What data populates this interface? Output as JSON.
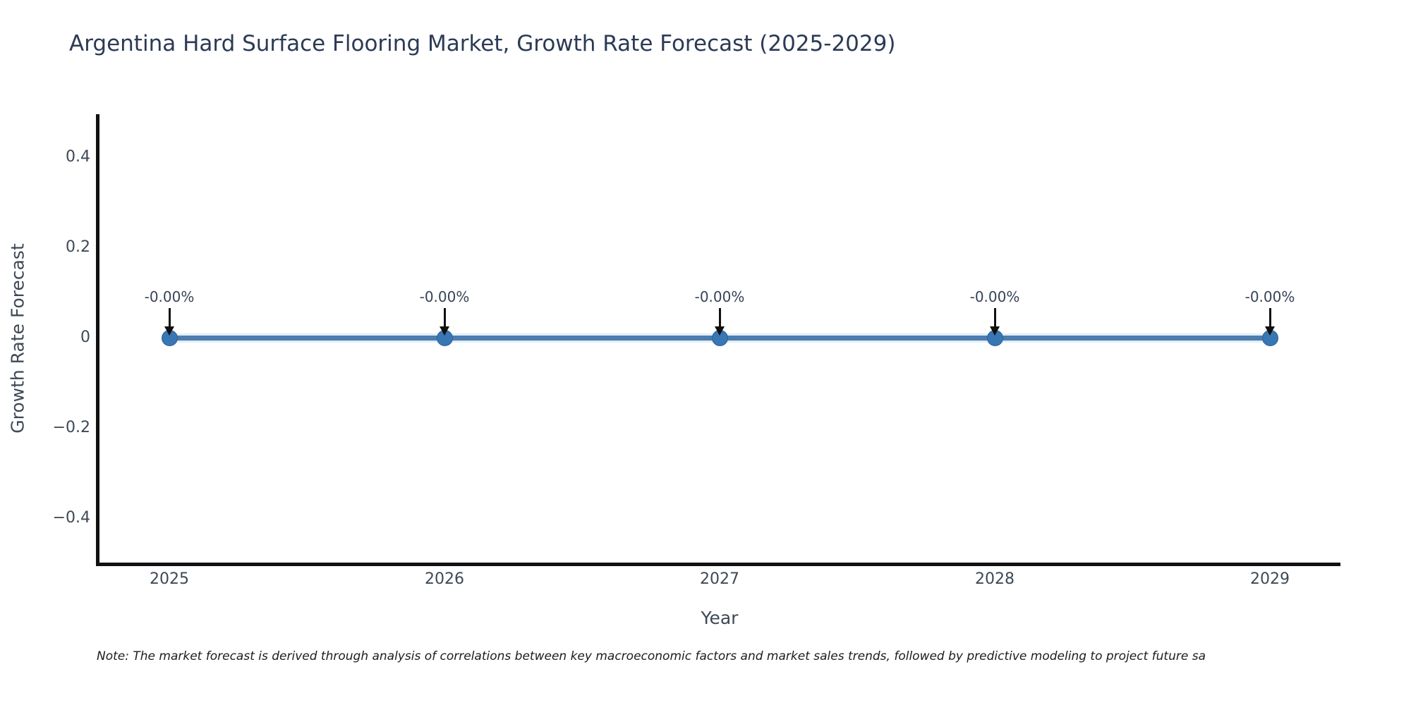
{
  "title": "Argentina Hard Surface Flooring Market, Growth Rate Forecast (2025-2029)",
  "note": "Note: The market forecast is derived through analysis of correlations between key macroeconomic factors and market sales trends, followed by predictive modeling to project future sa",
  "chart_data": {
    "type": "line",
    "title": "Argentina Hard Surface Flooring Market, Growth Rate Forecast (2025-2029)",
    "xlabel": "Year",
    "ylabel": "Growth Rate Forecast",
    "x": [
      2025,
      2026,
      2027,
      2028,
      2029
    ],
    "series": [
      {
        "name": "Growth Rate Forecast",
        "values": [
          0,
          0,
          0,
          0,
          0
        ],
        "point_labels": [
          "-0.00%",
          "-0.00%",
          "-0.00%",
          "-0.00%",
          "-0.00%"
        ]
      }
    ],
    "xticks": [
      {
        "v": 2025,
        "label": "2025"
      },
      {
        "v": 2026,
        "label": "2026"
      },
      {
        "v": 2027,
        "label": "2027"
      },
      {
        "v": 2028,
        "label": "2028"
      },
      {
        "v": 2029,
        "label": "2029"
      }
    ],
    "yticks": [
      {
        "v": 0.4,
        "label": "0.4"
      },
      {
        "v": 0.2,
        "label": "0.2"
      },
      {
        "v": 0,
        "label": "0"
      },
      {
        "v": -0.2,
        "label": "−0.2"
      },
      {
        "v": -0.4,
        "label": "−0.4"
      }
    ],
    "ylim": [
      -0.49,
      0.49
    ],
    "grid": false,
    "legend": "none",
    "colors": {
      "line": "#4d7dae",
      "marker_fill": "#3876b4",
      "marker_edge": "#2e6194",
      "axis": "#111111",
      "title_text": "#2c3a55",
      "tick_text": "#3d4956",
      "annotation_arrow": "#111111"
    }
  }
}
